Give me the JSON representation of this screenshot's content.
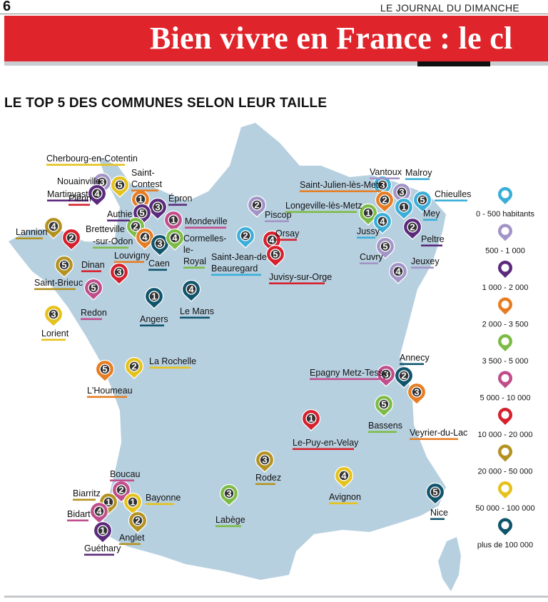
{
  "header": {
    "page_number": "6",
    "newspaper": "LE JOURNAL DU DIMANCHE",
    "headline": "Bien vivre en France : le cl"
  },
  "section_title": "LE TOP 5 DES COMMUNES SELON LEUR TAILLE",
  "colors": {
    "banner_red": "#e0242b",
    "map_fill": "#b7d0e0",
    "c_0_500": "#3aaed8",
    "c_500_1000": "#a294c6",
    "c_1000_2000": "#5b2a7c",
    "c_2000_3500": "#e67d23",
    "c_3500_5000": "#7cbb45",
    "c_5000_10000": "#c04e8c",
    "c_10000_20000": "#d6202c",
    "c_20000_50000": "#b39222",
    "c_50000_100000": "#e6c21c",
    "c_100000_plus": "#10546c"
  },
  "legend": [
    {
      "label": "0 - 500 habitants",
      "color": "#3aaed8"
    },
    {
      "label": "500 - 1 000",
      "color": "#a294c6"
    },
    {
      "label": "1 000 - 2 000",
      "color": "#5b2a7c"
    },
    {
      "label": "2 000 - 3 500",
      "color": "#e67d23"
    },
    {
      "label": "3 500 - 5 000",
      "color": "#7cbb45"
    },
    {
      "label": "5 000 - 10 000",
      "color": "#c04e8c"
    },
    {
      "label": "10 000 - 20 000",
      "color": "#d6202c"
    },
    {
      "label": "20 000 - 50 000",
      "color": "#b39222"
    },
    {
      "label": "50 000 - 100 000",
      "color": "#e6c21c"
    },
    {
      "label": "plus de 100 000",
      "color": "#10546c"
    }
  ],
  "pins": [
    {
      "rank": "3",
      "color": "#a294c6"
    },
    {
      "rank": "5",
      "color": "#e6c21c"
    },
    {
      "rank": "4",
      "color": "#5b2a7c"
    },
    {
      "rank": "1",
      "color": "#e67d23"
    },
    {
      "rank": "3",
      "color": "#5b2a7c"
    },
    {
      "rank": "5",
      "color": "#5b2a7c"
    },
    {
      "rank": "1",
      "color": "#c04e8c"
    },
    {
      "rank": "2",
      "color": "#7cbb45"
    },
    {
      "rank": "4",
      "color": "#e67d23"
    },
    {
      "rank": "3",
      "color": "#10546c"
    },
    {
      "rank": "4",
      "color": "#7cbb45"
    },
    {
      "rank": "4",
      "color": "#b39222"
    },
    {
      "rank": "2",
      "color": "#d6202c"
    },
    {
      "rank": "5",
      "color": "#b39222"
    },
    {
      "rank": "3",
      "color": "#d6202c"
    },
    {
      "rank": "5",
      "color": "#c04e8c"
    },
    {
      "rank": "3",
      "color": "#e6c21c"
    },
    {
      "rank": "1",
      "color": "#10546c"
    },
    {
      "rank": "4",
      "color": "#10546c"
    },
    {
      "rank": "2",
      "color": "#a294c6"
    },
    {
      "rank": "2",
      "color": "#3aaed8"
    },
    {
      "rank": "4",
      "color": "#d6202c"
    },
    {
      "rank": "5",
      "color": "#d6202c"
    },
    {
      "rank": "3",
      "color": "#a294c6"
    },
    {
      "rank": "3",
      "color": "#3aaed8"
    },
    {
      "rank": "5",
      "color": "#3aaed8"
    },
    {
      "rank": "2",
      "color": "#e67d23"
    },
    {
      "rank": "1",
      "color": "#3aaed8"
    },
    {
      "rank": "1",
      "color": "#7cbb45"
    },
    {
      "rank": "4",
      "color": "#3aaed8"
    },
    {
      "rank": "2",
      "color": "#5b2a7c"
    },
    {
      "rank": "5",
      "color": "#a294c6"
    },
    {
      "rank": "4",
      "color": "#a294c6"
    },
    {
      "rank": "2",
      "color": "#e6c21c"
    },
    {
      "rank": "5",
      "color": "#e67d23"
    },
    {
      "rank": "3",
      "color": "#c04e8c"
    },
    {
      "rank": "2",
      "color": "#10546c"
    },
    {
      "rank": "3",
      "color": "#e67d23"
    },
    {
      "rank": "5",
      "color": "#7cbb45"
    },
    {
      "rank": "1",
      "color": "#d6202c"
    },
    {
      "rank": "3",
      "color": "#b39222"
    },
    {
      "rank": "4",
      "color": "#e6c21c"
    },
    {
      "rank": "3",
      "color": "#7cbb45"
    },
    {
      "rank": "5",
      "color": "#10546c"
    },
    {
      "rank": "2",
      "color": "#c04e8c"
    },
    {
      "rank": "1",
      "color": "#b39222"
    },
    {
      "rank": "1",
      "color": "#e6c21c"
    },
    {
      "rank": "4",
      "color": "#c04e8c"
    },
    {
      "rank": "2",
      "color": "#b39222"
    },
    {
      "rank": "1",
      "color": "#5b2a7c"
    }
  ],
  "towns": [
    {
      "name": "Cherbourg-en-Cotentin",
      "color": "#e6c21c"
    },
    {
      "name": "Nouainville",
      "color": "#a294c6"
    },
    {
      "name": "Saint-",
      "color": ""
    },
    {
      "name": "Contest",
      "color": "#e67d23"
    },
    {
      "name": "Martinvast",
      "color": "#5b2a7c"
    },
    {
      "name": "Épron",
      "color": "#5b2a7c"
    },
    {
      "name": "Plérin",
      "color": "#d6202c"
    },
    {
      "name": "Authie",
      "color": "#5b2a7c"
    },
    {
      "name": "Mondeville",
      "color": "#c04e8c"
    },
    {
      "name": "Lannion",
      "color": "#b39222"
    },
    {
      "name": "Bretteville",
      "color": ""
    },
    {
      "name": "-sur-Odon",
      "color": "#7cbb45"
    },
    {
      "name": "Cormelles-",
      "color": ""
    },
    {
      "name": "le-",
      "color": ""
    },
    {
      "name": "Royal",
      "color": "#7cbb45"
    },
    {
      "name": "Louvigny",
      "color": "#e67d23"
    },
    {
      "name": "Dinan",
      "color": "#d6202c"
    },
    {
      "name": "Caen",
      "color": "#10546c"
    },
    {
      "name": "Saint-Brieuc",
      "color": "#b39222"
    },
    {
      "name": "Redon",
      "color": "#c04e8c"
    },
    {
      "name": "Angers",
      "color": "#10546c"
    },
    {
      "name": "Le Mans",
      "color": "#10546c"
    },
    {
      "name": "Lorient",
      "color": "#e6c21c"
    },
    {
      "name": "Piscop",
      "color": "#a294c6"
    },
    {
      "name": "Orsay",
      "color": "#d6202c"
    },
    {
      "name": "Saint-Jean-de",
      "color": ""
    },
    {
      "name": "Beauregard",
      "color": "#3aaed8"
    },
    {
      "name": "Juvisy-sur-Orge",
      "color": "#d6202c"
    },
    {
      "name": "Vantoux",
      "color": "#a294c6"
    },
    {
      "name": "Malroy",
      "color": "#3aaed8"
    },
    {
      "name": "Saint-Julien-lès-Metz",
      "color": "#e67d23"
    },
    {
      "name": "Chieulles",
      "color": "#3aaed8"
    },
    {
      "name": "Longeville-lès-Metz",
      "color": "#7cbb45"
    },
    {
      "name": "Mey",
      "color": "#3aaed8"
    },
    {
      "name": "Jussy",
      "color": "#3aaed8"
    },
    {
      "name": "Peltre",
      "color": "#5b2a7c"
    },
    {
      "name": "Cuvry",
      "color": "#a294c6"
    },
    {
      "name": "Jeuxey",
      "color": "#a294c6"
    },
    {
      "name": "La Rochelle",
      "color": "#e6c21c"
    },
    {
      "name": "L'Houmeau",
      "color": "#e67d23"
    },
    {
      "name": "Annecy",
      "color": "#10546c"
    },
    {
      "name": "Epagny Metz-Tessy",
      "color": "#c04e8c"
    },
    {
      "name": "Bassens",
      "color": "#7cbb45"
    },
    {
      "name": "Veyrier-du-Lac",
      "color": "#e67d23"
    },
    {
      "name": "Le-Puy-en-Velay",
      "color": "#d6202c"
    },
    {
      "name": "Rodez",
      "color": "#b39222"
    },
    {
      "name": "Avignon",
      "color": "#e6c21c"
    },
    {
      "name": "Labège",
      "color": "#7cbb45"
    },
    {
      "name": "Nice",
      "color": "#10546c"
    },
    {
      "name": "Boucau",
      "color": "#c04e8c"
    },
    {
      "name": "Biarritz",
      "color": "#b39222"
    },
    {
      "name": "Bayonne",
      "color": "#e6c21c"
    },
    {
      "name": "Bidart",
      "color": "#c04e8c"
    },
    {
      "name": "Anglet",
      "color": "#b39222"
    },
    {
      "name": "Guéthary",
      "color": "#5b2a7c"
    }
  ]
}
